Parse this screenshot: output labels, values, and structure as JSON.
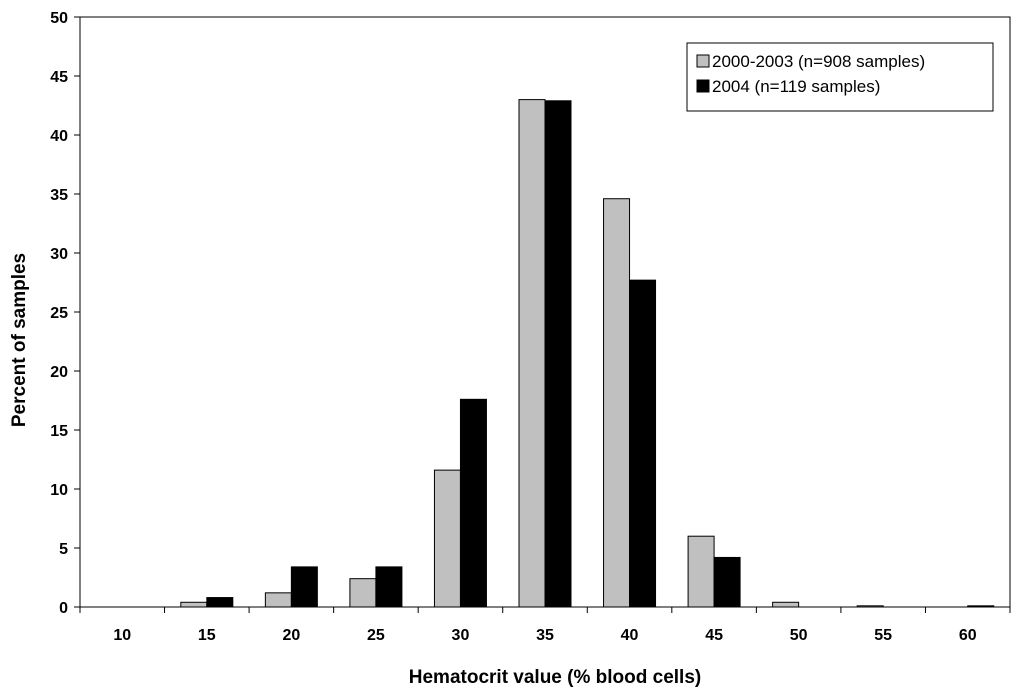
{
  "chart_data": {
    "type": "bar",
    "title": "",
    "xlabel": "Hematocrit value (% blood cells)",
    "ylabel": "Percent of samples",
    "categories": [
      "10",
      "15",
      "20",
      "25",
      "30",
      "35",
      "40",
      "45",
      "50",
      "55",
      "60"
    ],
    "ylim": [
      0,
      50
    ],
    "yticks": [
      0,
      5,
      10,
      15,
      20,
      25,
      30,
      35,
      40,
      45,
      50
    ],
    "grid": false,
    "legend_position": "top-right",
    "series": [
      {
        "name": "2000-2003 (n=908 samples)",
        "color": "#c0c0c0",
        "values": [
          0,
          0.4,
          1.2,
          2.4,
          11.6,
          43.0,
          34.6,
          6.0,
          0.4,
          0.1,
          0
        ]
      },
      {
        "name": "2004 (n=119 samples)",
        "color": "#000000",
        "values": [
          0,
          0.8,
          3.4,
          3.4,
          17.6,
          42.9,
          27.7,
          4.2,
          0,
          0,
          0.1
        ]
      }
    ]
  }
}
